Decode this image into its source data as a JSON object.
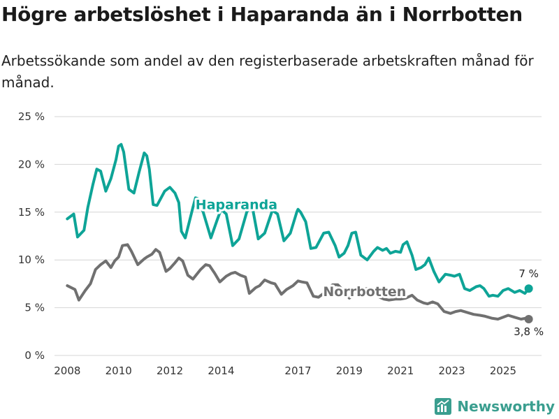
{
  "title": "Högre arbetslöshet i Haparanda än i Norrbotten",
  "subtitle": "Arbetssökande som andel av den registerbaserade arbetskraften månad för månad.",
  "brand": {
    "name": "Newsworthy",
    "icon": "bar-chart-logo-icon",
    "color": "#3a9e8f"
  },
  "chart_data": {
    "type": "line",
    "title": "Högre arbetslöshet i Haparanda än i Norrbotten",
    "xlabel": "",
    "ylabel": "",
    "ylim": [
      0,
      25
    ],
    "xlim": [
      2007.5,
      2026.5
    ],
    "yticks": [
      0,
      5,
      10,
      15,
      20,
      25
    ],
    "ytick_labels": [
      "0 %",
      "5 %",
      "10 %",
      "15 %",
      "20 %",
      "25 %"
    ],
    "xticks": [
      2008,
      2010,
      2012,
      2014,
      2017,
      2019,
      2021,
      2023,
      2025
    ],
    "xtick_labels": [
      "2008",
      "2010",
      "2012",
      "2014",
      "2017",
      "2019",
      "2021",
      "2023",
      "2025"
    ],
    "grid": true,
    "series": [
      {
        "name": "Haparanda",
        "color": "#0ea497",
        "end_label": "7 %",
        "x": [
          2008.0,
          2008.25,
          2008.4,
          2008.65,
          2008.8,
          2009.0,
          2009.15,
          2009.3,
          2009.5,
          2009.7,
          2009.9,
          2010.0,
          2010.1,
          2010.2,
          2010.4,
          2010.6,
          2010.8,
          2011.0,
          2011.1,
          2011.2,
          2011.35,
          2011.5,
          2011.8,
          2012.0,
          2012.2,
          2012.35,
          2012.45,
          2012.6,
          2012.9,
          2013.0,
          2013.1,
          2013.3,
          2013.6,
          2013.85,
          2014.0,
          2014.2,
          2014.45,
          2014.7,
          2015.0,
          2015.2,
          2015.45,
          2015.7,
          2016.0,
          2016.2,
          2016.45,
          2016.7,
          2016.95,
          2017.0,
          2017.1,
          2017.3,
          2017.5,
          2017.7,
          2018.0,
          2018.2,
          2018.45,
          2018.6,
          2018.8,
          2018.95,
          2019.1,
          2019.25,
          2019.45,
          2019.7,
          2019.95,
          2020.1,
          2020.3,
          2020.45,
          2020.6,
          2020.8,
          2021.0,
          2021.1,
          2021.25,
          2021.45,
          2021.6,
          2021.8,
          2021.95,
          2022.1,
          2022.3,
          2022.5,
          2022.75,
          2022.95,
          2023.1,
          2023.3,
          2023.5,
          2023.7,
          2023.95,
          2024.1,
          2024.25,
          2024.45,
          2024.6,
          2024.8,
          2025.0,
          2025.2,
          2025.45,
          2025.65,
          2025.85,
          2026.0
        ],
        "values": [
          14.3,
          14.8,
          12.4,
          13.1,
          15.5,
          17.9,
          19.5,
          19.3,
          17.2,
          18.5,
          20.5,
          21.9,
          22.1,
          21.3,
          17.4,
          17.0,
          19.2,
          21.2,
          20.9,
          19.5,
          15.8,
          15.7,
          17.2,
          17.6,
          17.0,
          16.0,
          13.0,
          12.3,
          15.5,
          16.5,
          16.4,
          15.0,
          12.3,
          14.2,
          15.3,
          14.8,
          11.5,
          12.2,
          15.0,
          15.8,
          12.2,
          12.8,
          15.2,
          14.8,
          12.0,
          12.8,
          15.0,
          15.3,
          15.0,
          14.0,
          11.2,
          11.3,
          12.8,
          12.9,
          11.5,
          10.3,
          10.7,
          11.5,
          12.8,
          12.9,
          10.5,
          10.0,
          10.9,
          11.3,
          11.0,
          11.2,
          10.7,
          10.9,
          10.8,
          11.6,
          11.9,
          10.5,
          9.0,
          9.2,
          9.5,
          10.2,
          8.8,
          7.7,
          8.5,
          8.4,
          8.3,
          8.5,
          7.0,
          6.8,
          7.2,
          7.3,
          7.0,
          6.2,
          6.3,
          6.2,
          6.8,
          7.0,
          6.6,
          6.8,
          6.5,
          7.0
        ]
      },
      {
        "name": "Norrbotten",
        "color": "#707070",
        "end_label": "3,8 %",
        "x": [
          2008.0,
          2008.3,
          2008.45,
          2008.7,
          2008.9,
          2009.1,
          2009.3,
          2009.5,
          2009.7,
          2009.85,
          2010.0,
          2010.15,
          2010.35,
          2010.5,
          2010.75,
          2011.0,
          2011.1,
          2011.3,
          2011.45,
          2011.6,
          2011.85,
          2012.0,
          2012.2,
          2012.35,
          2012.5,
          2012.7,
          2012.9,
          2013.05,
          2013.2,
          2013.4,
          2013.55,
          2013.75,
          2013.95,
          2014.2,
          2014.4,
          2014.55,
          2014.75,
          2014.95,
          2015.1,
          2015.35,
          2015.5,
          2015.7,
          2015.95,
          2016.1,
          2016.35,
          2016.55,
          2016.8,
          2017.0,
          2017.15,
          2017.35,
          2017.6,
          2017.8,
          2018.0,
          2018.15,
          2018.35,
          2018.55,
          2018.8,
          2019.0,
          2019.2,
          2019.45,
          2019.7,
          2019.95,
          2020.1,
          2020.35,
          2020.55,
          2020.8,
          2021.0,
          2021.2,
          2021.45,
          2021.65,
          2021.9,
          2022.05,
          2022.25,
          2022.45,
          2022.7,
          2022.95,
          2023.15,
          2023.35,
          2023.6,
          2023.85,
          2024.1,
          2024.3,
          2024.55,
          2024.8,
          2025.0,
          2025.2,
          2025.45,
          2025.7,
          2025.9,
          2026.0
        ],
        "values": [
          7.3,
          6.9,
          5.8,
          6.8,
          7.5,
          9.0,
          9.5,
          9.9,
          9.2,
          9.9,
          10.3,
          11.5,
          11.6,
          10.9,
          9.5,
          10.1,
          10.3,
          10.6,
          11.1,
          10.8,
          8.8,
          9.1,
          9.7,
          10.2,
          9.9,
          8.4,
          8.0,
          8.5,
          9.0,
          9.5,
          9.4,
          8.6,
          7.7,
          8.3,
          8.6,
          8.7,
          8.4,
          8.2,
          6.5,
          7.1,
          7.3,
          7.9,
          7.6,
          7.5,
          6.4,
          6.9,
          7.3,
          7.8,
          7.7,
          7.6,
          6.2,
          6.1,
          6.5,
          7.0,
          7.4,
          7.4,
          6.7,
          6.0,
          6.5,
          6.9,
          7.0,
          6.8,
          6.2,
          5.9,
          5.8,
          5.9,
          5.9,
          6.0,
          6.3,
          5.8,
          5.5,
          5.4,
          5.6,
          5.4,
          4.6,
          4.4,
          4.6,
          4.7,
          4.5,
          4.3,
          4.2,
          4.1,
          3.9,
          3.8,
          4.0,
          4.2,
          4.0,
          3.8,
          3.9,
          3.8
        ]
      }
    ]
  }
}
